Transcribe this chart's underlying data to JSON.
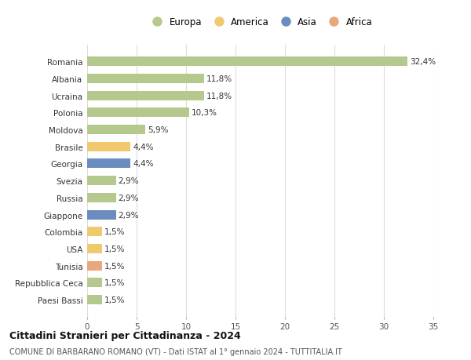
{
  "countries": [
    "Romania",
    "Albania",
    "Ucraina",
    "Polonia",
    "Moldova",
    "Brasile",
    "Georgia",
    "Svezia",
    "Russia",
    "Giappone",
    "Colombia",
    "USA",
    "Tunisia",
    "Repubblica Ceca",
    "Paesi Bassi"
  ],
  "values": [
    32.4,
    11.8,
    11.8,
    10.3,
    5.9,
    4.4,
    4.4,
    2.9,
    2.9,
    2.9,
    1.5,
    1.5,
    1.5,
    1.5,
    1.5
  ],
  "labels": [
    "32,4%",
    "11,8%",
    "11,8%",
    "10,3%",
    "5,9%",
    "4,4%",
    "4,4%",
    "2,9%",
    "2,9%",
    "2,9%",
    "1,5%",
    "1,5%",
    "1,5%",
    "1,5%",
    "1,5%"
  ],
  "continents": [
    "Europa",
    "Europa",
    "Europa",
    "Europa",
    "Europa",
    "America",
    "Asia",
    "Europa",
    "Europa",
    "Asia",
    "America",
    "America",
    "Africa",
    "Europa",
    "Europa"
  ],
  "continent_colors": {
    "Europa": "#b5c98e",
    "America": "#f0c96e",
    "Asia": "#6b8cbf",
    "Africa": "#e8a87c"
  },
  "legend_order": [
    "Europa",
    "America",
    "Asia",
    "Africa"
  ],
  "title": "Cittadini Stranieri per Cittadinanza - 2024",
  "subtitle": "COMUNE DI BARBARANO ROMANO (VT) - Dati ISTAT al 1° gennaio 2024 - TUTTITALIA.IT",
  "xlim": [
    0,
    35
  ],
  "xticks": [
    0,
    5,
    10,
    15,
    20,
    25,
    30,
    35
  ],
  "background_color": "#ffffff",
  "grid_color": "#dddddd"
}
